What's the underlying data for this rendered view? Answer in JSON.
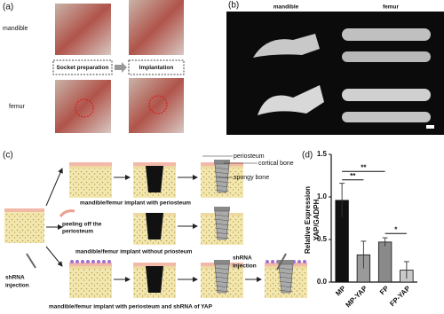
{
  "panel_a": {
    "label": "(a)",
    "row_labels": [
      "mandible",
      "femur"
    ],
    "steps": [
      "Socket preparation",
      "Implantation"
    ]
  },
  "panel_b": {
    "label": "(b)",
    "column_labels": [
      "mandible",
      "femur"
    ]
  },
  "panel_c": {
    "label": "(c)",
    "layer_labels": [
      "periosteum",
      "cortical bone",
      "spongy bone"
    ],
    "captions": [
      "mandible/femur implant with periosteum",
      "mandible/femur implant without priosteum",
      "mandible/femur implant with periosteum and shRNA of YAP"
    ],
    "peeling": [
      "peeling off the",
      "periosteum"
    ],
    "injection_left": [
      "shRNA",
      "injection"
    ],
    "injection_right": [
      "shRNA",
      "injection"
    ]
  },
  "chart_data": {
    "type": "bar",
    "panel_label": "(d)",
    "ylabel": [
      "Relative Expression",
      "YAP/GADPH"
    ],
    "categories": [
      "MP",
      "MP-YAP",
      "FP",
      "FP-YAP"
    ],
    "values": [
      0.96,
      0.32,
      0.47,
      0.14
    ],
    "errors": [
      0.2,
      0.16,
      0.05,
      0.1
    ],
    "colors": [
      "#111111",
      "#9a9a9a",
      "#8a8a8a",
      "#c9c9c9"
    ],
    "ylim": [
      0,
      1.5
    ],
    "yticks": [
      {
        "value": 0,
        "label": "0.0"
      },
      0.5,
      {
        "value": 1,
        "label": "1.0"
      },
      1.5
    ],
    "annotations": [
      "**",
      "**",
      "*"
    ]
  }
}
